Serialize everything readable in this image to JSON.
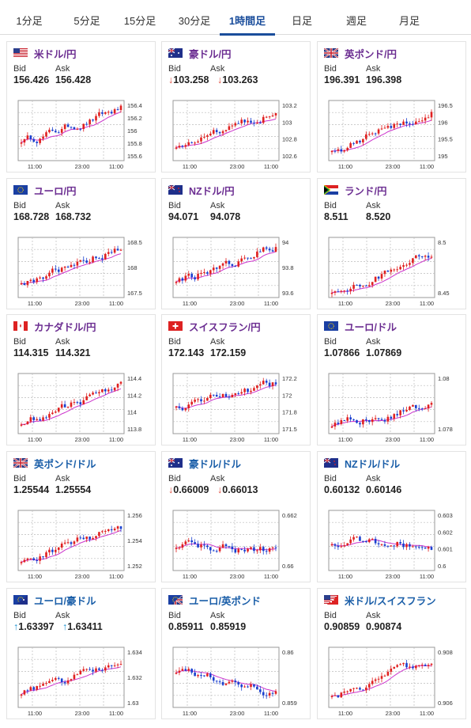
{
  "tabs": [
    {
      "label": "1分足",
      "active": false
    },
    {
      "label": "5分足",
      "active": false
    },
    {
      "label": "15分足",
      "active": false
    },
    {
      "label": "30分足",
      "active": false
    },
    {
      "label": "1時間足",
      "active": true
    },
    {
      "label": "日足",
      "active": false
    },
    {
      "label": "週足",
      "active": false
    },
    {
      "label": "月足",
      "active": false
    }
  ],
  "bid_label": "Bid",
  "ask_label": "Ask",
  "x_tick_labels": [
    "11:00",
    "23:00",
    "11:00"
  ],
  "colors": {
    "title_purple": "#6b2d91",
    "title_blue": "#1a5ea8",
    "tab_active": "#1a4d9b",
    "candle_up": "#e02020",
    "candle_down": "#1a3fcf",
    "ma_line": "#cc33cc",
    "down_arrow": "#e0493b",
    "up_arrow": "#1a8fcf"
  },
  "cards": [
    {
      "pair": "米ドル/円",
      "title_color": "#6b2d91",
      "flag": "us",
      "bid": "156.426",
      "ask": "156.428",
      "trend": "none",
      "y_ticks": [
        "156.4",
        "156.2",
        "156",
        "155.8",
        "155.6"
      ],
      "chart_data": {
        "type": "candlestick",
        "start": 155.85,
        "end": 156.4,
        "ylim": [
          155.5,
          156.5
        ]
      }
    },
    {
      "pair": "豪ドル/円",
      "title_color": "#6b2d91",
      "flag": "au",
      "bid": "103.258",
      "ask": "103.263",
      "trend": "down",
      "y_ticks": [
        "103.2",
        "103",
        "102.8",
        "102.6"
      ],
      "chart_data": {
        "type": "candlestick",
        "start": 102.75,
        "end": 103.25,
        "ylim": [
          102.55,
          103.3
        ]
      }
    },
    {
      "pair": "英ポンド/円",
      "title_color": "#6b2d91",
      "flag": "gb",
      "bid": "196.391",
      "ask": "196.398",
      "trend": "none",
      "y_ticks": [
        "196.5",
        "196",
        "195.5",
        "195"
      ],
      "chart_data": {
        "type": "candlestick",
        "start": 195.1,
        "end": 196.4,
        "ylim": [
          194.7,
          196.6
        ]
      }
    },
    {
      "pair": "ユーロ/円",
      "title_color": "#6b2d91",
      "flag": "eu",
      "bid": "168.728",
      "ask": "168.732",
      "trend": "none",
      "y_ticks": [
        "168.5",
        "168",
        "167.5"
      ],
      "chart_data": {
        "type": "candlestick",
        "start": 167.9,
        "end": 168.75,
        "ylim": [
          167.5,
          168.9
        ]
      }
    },
    {
      "pair": "NZドル/円",
      "title_color": "#6b2d91",
      "flag": "nz",
      "bid": "94.071",
      "ask": "94.078",
      "trend": "none",
      "y_ticks": [
        "94",
        "93.8",
        "93.6"
      ],
      "chart_data": {
        "type": "candlestick",
        "start": 93.65,
        "end": 94.05,
        "ylim": [
          93.45,
          94.1
        ]
      }
    },
    {
      "pair": "ランド/円",
      "title_color": "#6b2d91",
      "flag": "za",
      "bid": "8.511",
      "ask": "8.520",
      "trend": "none",
      "y_ticks": [
        "8.5",
        "8.45"
      ],
      "chart_data": {
        "type": "candlestick",
        "start": 8.43,
        "end": 8.52,
        "ylim": [
          8.42,
          8.54
        ]
      }
    },
    {
      "pair": "カナダドル/円",
      "title_color": "#6b2d91",
      "flag": "ca",
      "bid": "114.315",
      "ask": "114.321",
      "trend": "none",
      "y_ticks": [
        "114.4",
        "114.2",
        "114",
        "113.8"
      ],
      "chart_data": {
        "type": "candlestick",
        "start": 113.85,
        "end": 114.33,
        "ylim": [
          113.7,
          114.45
        ]
      }
    },
    {
      "pair": "スイスフラン/円",
      "title_color": "#6b2d91",
      "flag": "ch",
      "bid": "172.143",
      "ask": "172.159",
      "trend": "none",
      "y_ticks": [
        "172.2",
        "172",
        "171.8",
        "171.5"
      ],
      "chart_data": {
        "type": "candlestick",
        "start": 171.85,
        "end": 172.15,
        "ylim": [
          171.45,
          172.25
        ]
      }
    },
    {
      "pair": "ユーロ/ドル",
      "title_color": "#6b2d91",
      "flag": "eu",
      "bid": "1.07866",
      "ask": "1.07869",
      "trend": "none",
      "y_ticks": [
        "1.08",
        "1.078"
      ],
      "chart_data": {
        "type": "candlestick",
        "start": 1.0765,
        "end": 1.0787,
        "ylim": [
          1.0755,
          1.0815
        ]
      }
    },
    {
      "pair": "英ポンド/ドル",
      "title_color": "#1a5ea8",
      "flag": "gb",
      "bid": "1.25544",
      "ask": "1.25554",
      "trend": "none",
      "y_ticks": [
        "1.256",
        "1.254",
        "1.252"
      ],
      "chart_data": {
        "type": "candlestick",
        "start": 1.2525,
        "end": 1.2555,
        "ylim": [
          1.2515,
          1.2568
        ]
      }
    },
    {
      "pair": "豪ドル/ドル",
      "title_color": "#1a5ea8",
      "flag": "au",
      "bid": "0.66009",
      "ask": "0.66013",
      "trend": "down",
      "y_ticks": [
        "0.662",
        "0.66"
      ],
      "chart_data": {
        "type": "candlestick",
        "start": 0.6605,
        "end": 0.6601,
        "ylim": [
          0.6585,
          0.6632
        ]
      }
    },
    {
      "pair": "NZドル/ドル",
      "title_color": "#1a5ea8",
      "flag": "nz",
      "bid": "0.60132",
      "ask": "0.60146",
      "trend": "none",
      "y_ticks": [
        "0.603",
        "0.602",
        "0.601",
        "0.6"
      ],
      "chart_data": {
        "type": "candlestick",
        "start": 0.6015,
        "end": 0.6013,
        "ylim": [
          0.5998,
          0.6033
        ]
      }
    },
    {
      "pair": "ユーロ/豪ドル",
      "title_color": "#1a5ea8",
      "flag": "euau",
      "bid": "1.63397",
      "ask": "1.63411",
      "trend": "up",
      "y_ticks": [
        "1.634",
        "1.632",
        "1.63"
      ],
      "chart_data": {
        "type": "candlestick",
        "start": 1.631,
        "end": 1.6338,
        "ylim": [
          1.6295,
          1.6352
        ]
      }
    },
    {
      "pair": "ユーロ/英ポンド",
      "title_color": "#1a5ea8",
      "flag": "eugb",
      "bid": "0.85911",
      "ask": "0.85919",
      "trend": "none",
      "y_ticks": [
        "0.86",
        "0.859"
      ],
      "chart_data": {
        "type": "candlestick",
        "start": 0.8598,
        "end": 0.8591,
        "ylim": [
          0.8588,
          0.8604
        ]
      }
    },
    {
      "pair": "米ドル/スイスフラン",
      "title_color": "#1a5ea8",
      "flag": "usch",
      "bid": "0.90859",
      "ask": "0.90874",
      "trend": "none",
      "y_ticks": [
        "0.908",
        "0.906"
      ],
      "chart_data": {
        "type": "candlestick",
        "start": 0.9062,
        "end": 0.9087,
        "ylim": [
          0.9052,
          0.9094
        ]
      }
    }
  ]
}
